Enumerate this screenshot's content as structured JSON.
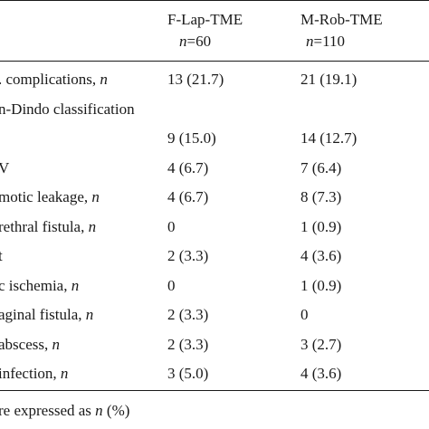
{
  "header": {
    "group1": {
      "name": "F-Lap-TME",
      "n_label": "n",
      "n_value": "=60"
    },
    "group2": {
      "name": "M-Rob-TME",
      "n_label": "n",
      "n_value": "=110"
    }
  },
  "rows": [
    {
      "label": ". complications, ",
      "label_italic": "n",
      "v1": "13 (21.7)",
      "v2": "21 (19.1)"
    },
    {
      "label": "n-Dindo classification",
      "label_italic": "",
      "v1": "",
      "v2": ""
    },
    {
      "label": "",
      "label_italic": "",
      "v1": "9 (15.0)",
      "v2": "14 (12.7)"
    },
    {
      "label": "V",
      "label_italic": "",
      "v1": "4 (6.7)",
      "v2": "7 (6.4)"
    },
    {
      "label": "motic leakage, ",
      "label_italic": "n",
      "v1": "4 (6.7)",
      "v2": "8 (7.3)"
    },
    {
      "label": "rethral fistula, ",
      "label_italic": "n",
      "v1": "0",
      "v2": "1 (0.9)"
    },
    {
      "label": "t",
      "label_italic": "",
      "v1": "2 (3.3)",
      "v2": "4 (3.6)"
    },
    {
      "label": "c ischemia, ",
      "label_italic": "n",
      "v1": "0",
      "v2": "1 (0.9)"
    },
    {
      "label": "aginal fistula, ",
      "label_italic": "n",
      "v1": "2 (3.3)",
      "v2": "0"
    },
    {
      "label": "abscess, ",
      "label_italic": "n",
      "v1": "2 (3.3)",
      "v2": "3 (2.7)"
    },
    {
      "label": " infection, ",
      "label_italic": "n",
      "v1": "3 (5.0)",
      "v2": "4 (3.6)"
    }
  ],
  "footnote": {
    "prefix": "re expressed as ",
    "italic": "n",
    "suffix": " (%)"
  }
}
